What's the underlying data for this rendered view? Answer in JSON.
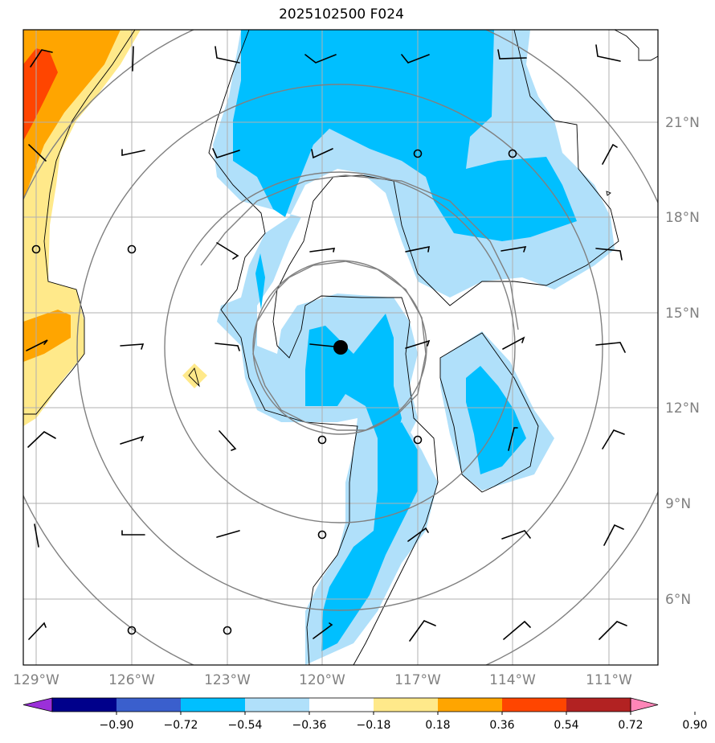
{
  "title": "2025102500 F024",
  "longitude_labels": [
    "129°W",
    "126°W",
    "123°W",
    "120°W",
    "117°W",
    "114°W",
    "111°W"
  ],
  "latitude_labels": [
    "21°N",
    "18°N",
    "15°N",
    "12°N",
    "9°N",
    "6°N"
  ],
  "colorbar": {
    "tick_labels": [
      "−0.90",
      "−0.72",
      "−0.54",
      "−0.36",
      "−0.18",
      "0.18",
      "0.36",
      "0.54",
      "0.72",
      "0.90"
    ],
    "colors": [
      "#9b30d9",
      "#00008b",
      "#3a5fcd",
      "#00bfff",
      "#b0e0fa",
      "#ffffff",
      "#ffe98a",
      "#ffa500",
      "#ff4500",
      "#b22222",
      "#ff86b8"
    ]
  },
  "field_colors": {
    "light_blue": "#b0e0fa",
    "blue": "#00bfff",
    "yellow": "#ffe98a",
    "orange": "#ffa500",
    "red_orange": "#ff4500"
  },
  "storm_center_marker": "filled-black-circle"
}
